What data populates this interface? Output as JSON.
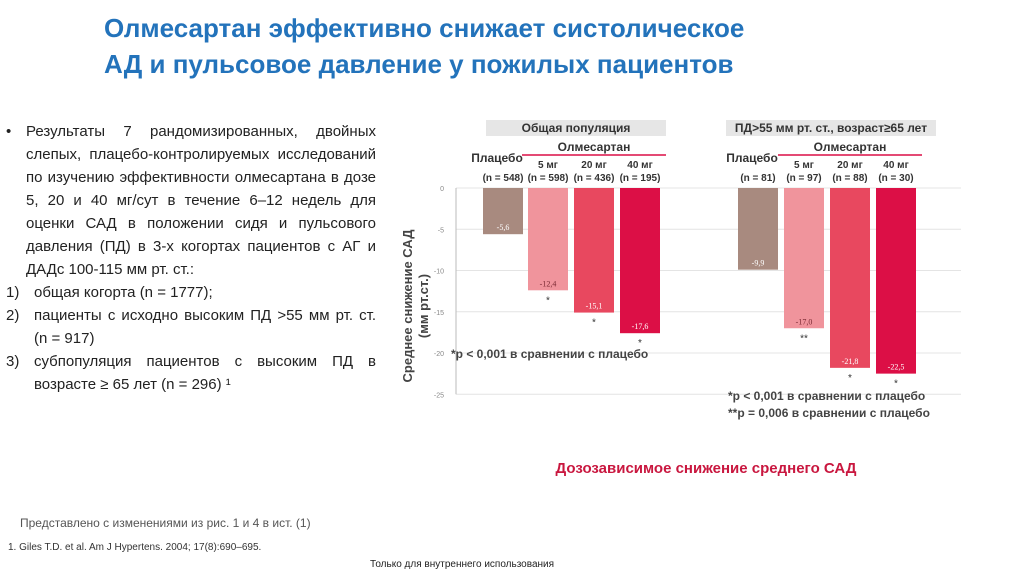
{
  "title": {
    "line1": "Олмесартан эффективно снижает систолическое",
    "line2": "АД и пульсовое давление у пожилых пациентов"
  },
  "left": {
    "bullet": "Результаты 7 рандомизированных, двойных слепых, плацебо-контролируемых исследований по изучению эффективности олмесартана в дозе 5, 20 и 40 мг/сут в течение 6–12 недель для оценки САД в положении сидя и пульсового давления (ПД) в 3-х когортах пациентов с АГ и ДАДс 100-115 мм рт. ст.:",
    "items": [
      {
        "n": "1)",
        "text": "общая когорта (n = 1777);"
      },
      {
        "n": "2)",
        "text": "пациенты с исходно высоким ПД >55 мм рт. ст. (n = 917)"
      },
      {
        "n": "3)",
        "text": "субпопуляция пациентов с высоким ПД в возрасте ≥ 65 лет (n = 296) ¹"
      }
    ]
  },
  "note": "Представлено с изменениями из рис. 1 и 4 в ист. (1)",
  "reference": "1. Giles T.D. et al. Am J Hypertens. 2004; 17(8):690–695.",
  "footer": "Только для внутреннего использования",
  "colors": {
    "title": "#2373bb",
    "placebo": "#a88a7f",
    "dose5": "#f0949c",
    "dose20": "#e8485f",
    "dose40": "#dc0f46",
    "subtitle": "#c9173f"
  },
  "chart_data": {
    "type": "bar",
    "ylabel": "Среднее снижение САД (мм рт.ст.)",
    "ylim": [
      -25,
      0
    ],
    "yticks": [
      "0",
      "-5",
      "-10",
      "-15",
      "-20",
      "-25"
    ],
    "grid": true,
    "drug_label": "Олмесартан",
    "subtitle": "Дозозависимое снижение среднего САД",
    "groups": [
      {
        "header": "Общая популяция",
        "footnotes": [
          "*р < 0,001 в сравнении с плацебо"
        ],
        "bars": [
          {
            "category": "Плацебо",
            "n": "(n = 548)",
            "value": -5.6,
            "label": "-5,6",
            "mark": ""
          },
          {
            "category": "5 мг",
            "n": "(n = 598)",
            "value": -12.4,
            "label": "-12,4",
            "mark": "*"
          },
          {
            "category": "20 мг",
            "n": "(n = 436)",
            "value": -15.1,
            "label": "-15,1",
            "mark": "*"
          },
          {
            "category": "40 мг",
            "n": "(n = 195)",
            "value": -17.6,
            "label": "-17,6",
            "mark": "*"
          }
        ]
      },
      {
        "header": "ПД>55 мм рт. ст., возраст≥65 лет",
        "footnotes": [
          "*р < 0,001 в сравнении с плацебо",
          "**р = 0,006 в сравнении с плацебо"
        ],
        "bars": [
          {
            "category": "Плацебо",
            "n": "(n = 81)",
            "value": -9.9,
            "label": "-9,9",
            "mark": ""
          },
          {
            "category": "5 мг",
            "n": "(n = 97)",
            "value": -17.0,
            "label": "-17,0",
            "mark": "**"
          },
          {
            "category": "20 мг",
            "n": "(n = 88)",
            "value": -21.8,
            "label": "-21,8",
            "mark": "*"
          },
          {
            "category": "40 мг",
            "n": "(n = 30)",
            "value": -22.5,
            "label": "-22,5",
            "mark": "*"
          }
        ]
      }
    ]
  }
}
